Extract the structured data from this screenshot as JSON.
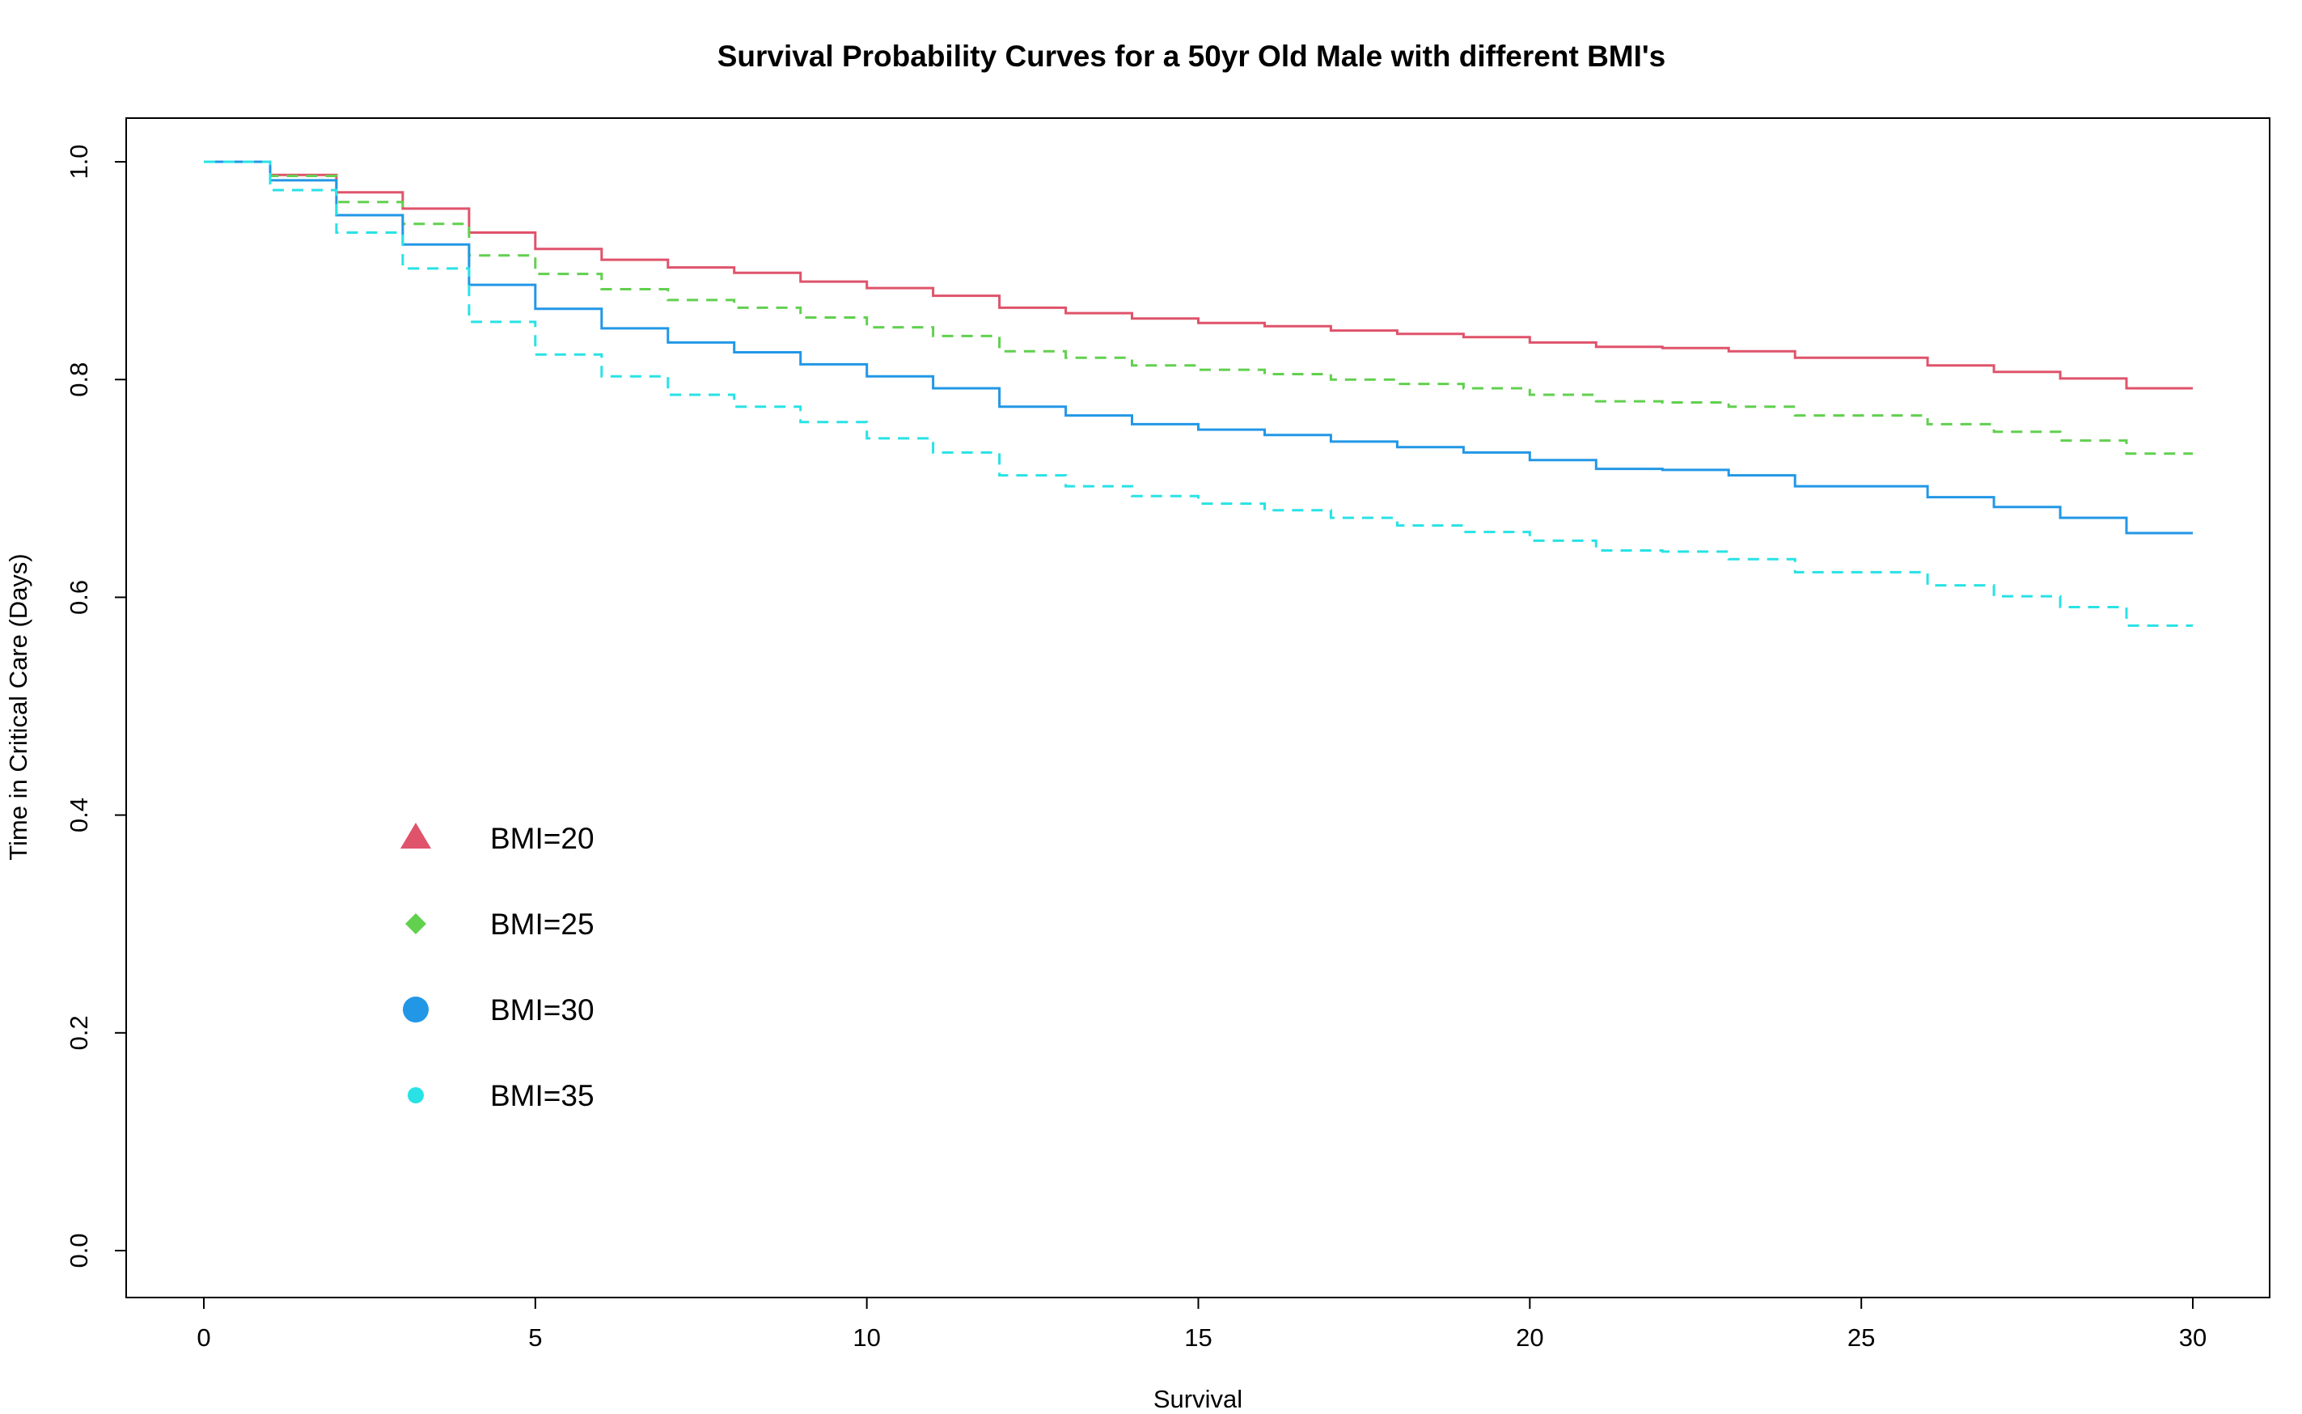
{
  "chart_data": {
    "type": "line",
    "title": "Survival Probability Curves for a 50yr Old Male with different BMI's",
    "xlabel": "Survival",
    "ylabel": "Time in Critical Care (Days)",
    "xlim": [
      0,
      30
    ],
    "ylim": [
      0,
      1
    ],
    "xticks": [
      0,
      5,
      10,
      15,
      20,
      25,
      30
    ],
    "yticks": [
      0.0,
      0.2,
      0.4,
      0.6,
      0.8,
      1.0
    ],
    "xtick_labels": [
      "0",
      "5",
      "10",
      "15",
      "20",
      "25",
      "30"
    ],
    "ytick_labels": [
      "0.0",
      "0.2",
      "0.4",
      "0.6",
      "0.8",
      "1.0"
    ],
    "step": true,
    "grid": false,
    "legend_position": "bottom-left",
    "x": [
      0,
      1,
      2,
      3,
      4,
      5,
      6,
      7,
      8,
      9,
      10,
      11,
      12,
      13,
      14,
      15,
      16,
      17,
      18,
      19,
      20,
      21,
      22,
      23,
      24,
      25,
      26,
      27,
      28,
      29,
      30
    ],
    "series": [
      {
        "name": "BMI=20",
        "color": "#DF536B",
        "line_style": "solid",
        "marker": "triangle",
        "values": [
          1.0,
          0.988,
          0.972,
          0.957,
          0.935,
          0.92,
          0.91,
          0.903,
          0.898,
          0.89,
          0.884,
          0.877,
          0.866,
          0.861,
          0.856,
          0.852,
          0.849,
          0.845,
          0.842,
          0.839,
          0.834,
          0.83,
          0.829,
          0.826,
          0.82,
          0.82,
          0.813,
          0.807,
          0.801,
          0.792,
          0.792
        ]
      },
      {
        "name": "BMI=25",
        "color": "#61D04F",
        "line_style": "dashed",
        "marker": "diamond",
        "values": [
          1.0,
          0.987,
          0.963,
          0.943,
          0.914,
          0.897,
          0.883,
          0.873,
          0.866,
          0.857,
          0.848,
          0.84,
          0.826,
          0.82,
          0.813,
          0.809,
          0.805,
          0.8,
          0.796,
          0.792,
          0.786,
          0.78,
          0.779,
          0.775,
          0.767,
          0.767,
          0.759,
          0.752,
          0.744,
          0.732,
          0.732
        ]
      },
      {
        "name": "BMI=30",
        "color": "#2297E6",
        "line_style": "solid",
        "marker": "circle",
        "values": [
          1.0,
          0.983,
          0.951,
          0.924,
          0.887,
          0.865,
          0.847,
          0.834,
          0.825,
          0.814,
          0.803,
          0.792,
          0.775,
          0.767,
          0.759,
          0.754,
          0.749,
          0.743,
          0.738,
          0.733,
          0.726,
          0.718,
          0.717,
          0.712,
          0.702,
          0.702,
          0.692,
          0.683,
          0.673,
          0.659,
          0.659
        ]
      },
      {
        "name": "BMI=35",
        "color": "#28E2E5",
        "line_style": "dashed",
        "marker": "small-circle",
        "values": [
          1.0,
          0.974,
          0.935,
          0.902,
          0.853,
          0.823,
          0.803,
          0.786,
          0.775,
          0.761,
          0.746,
          0.733,
          0.712,
          0.702,
          0.693,
          0.686,
          0.68,
          0.673,
          0.666,
          0.66,
          0.652,
          0.643,
          0.642,
          0.635,
          0.623,
          0.623,
          0.611,
          0.601,
          0.591,
          0.574,
          0.574
        ]
      }
    ]
  }
}
